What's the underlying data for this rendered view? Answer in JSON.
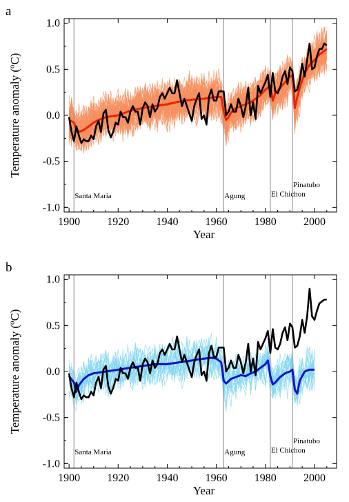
{
  "chart_data": [
    {
      "type": "line",
      "panel_label": "a",
      "xlabel": "Year",
      "ylabel": "Temperature anomaly (ºC)",
      "xlim": [
        1898,
        2009
      ],
      "ylim": [
        -1.05,
        1.05
      ],
      "xticks": [
        1900,
        1920,
        1940,
        1960,
        1980,
        2000
      ],
      "yticks": [
        -1.0,
        -0.5,
        0.0,
        0.5,
        1.0
      ],
      "ytick_labels": [
        "-1.0",
        "-0.5",
        "0.0",
        "0.5",
        "1.0"
      ],
      "grid": false,
      "volcanoes": [
        {
          "name": "Santa Maria",
          "year": 1902,
          "label_y": -0.87
        },
        {
          "name": "Agung",
          "year": 1963,
          "label_y": -0.87
        },
        {
          "name": "El Chichon",
          "year": 1982,
          "label_y": -0.85
        },
        {
          "name": "Pinatubo",
          "year": 1991,
          "label_y": -0.75
        }
      ],
      "observed": {
        "color": "#000000",
        "x": [
          1900,
          1901,
          1902,
          1903,
          1904,
          1905,
          1906,
          1907,
          1908,
          1909,
          1910,
          1911,
          1912,
          1913,
          1914,
          1915,
          1916,
          1917,
          1918,
          1919,
          1920,
          1921,
          1922,
          1923,
          1924,
          1925,
          1926,
          1927,
          1928,
          1929,
          1930,
          1931,
          1932,
          1933,
          1934,
          1935,
          1936,
          1937,
          1938,
          1939,
          1940,
          1941,
          1942,
          1943,
          1944,
          1945,
          1946,
          1947,
          1948,
          1949,
          1950,
          1951,
          1952,
          1953,
          1954,
          1955,
          1956,
          1957,
          1958,
          1959,
          1960,
          1961,
          1962,
          1963,
          1964,
          1965,
          1966,
          1967,
          1968,
          1969,
          1970,
          1971,
          1972,
          1973,
          1974,
          1975,
          1976,
          1977,
          1978,
          1979,
          1980,
          1981,
          1982,
          1983,
          1984,
          1985,
          1986,
          1987,
          1988,
          1989,
          1990,
          1991,
          1992,
          1993,
          1994,
          1995,
          1996,
          1997,
          1998,
          1999,
          2000,
          2001,
          2002,
          2003,
          2004,
          2005
        ],
        "y": [
          -0.02,
          -0.18,
          -0.28,
          -0.12,
          -0.22,
          -0.3,
          -0.26,
          -0.28,
          -0.28,
          -0.22,
          -0.26,
          -0.12,
          -0.06,
          -0.18,
          0.02,
          0.06,
          -0.16,
          -0.24,
          -0.18,
          -0.08,
          -0.1,
          0.04,
          -0.02,
          -0.02,
          -0.08,
          0.04,
          0.1,
          0.04,
          0.04,
          -0.1,
          0.08,
          0.14,
          0.1,
          -0.02,
          0.12,
          0.04,
          0.08,
          0.2,
          0.24,
          0.18,
          0.24,
          0.3,
          0.24,
          0.24,
          0.38,
          0.24,
          0.1,
          0.18,
          0.1,
          0.02,
          -0.06,
          0.1,
          0.18,
          0.24,
          -0.04,
          0.0,
          -0.1,
          0.2,
          0.28,
          0.16,
          0.16,
          0.26,
          0.26,
          0.26,
          0.0,
          0.04,
          0.12,
          0.04,
          0.04,
          0.18,
          0.1,
          -0.02,
          0.1,
          0.3,
          0.0,
          0.14,
          -0.04,
          0.32,
          0.24,
          0.3,
          0.36,
          0.44,
          0.2,
          0.46,
          0.26,
          0.24,
          0.3,
          0.42,
          0.48,
          0.34,
          0.52,
          0.48,
          0.26,
          0.28,
          0.38,
          0.56,
          0.42,
          0.6,
          0.78,
          0.5,
          0.52,
          0.64,
          0.72,
          0.72,
          0.78,
          0.76
        ]
      },
      "ensemble_mean": {
        "color": "#ee2200",
        "x": [
          1900,
          1902,
          1903,
          1904,
          1906,
          1908,
          1910,
          1912,
          1915,
          1920,
          1925,
          1930,
          1935,
          1940,
          1945,
          1950,
          1955,
          1960,
          1962,
          1963,
          1964,
          1965,
          1966,
          1968,
          1970,
          1972,
          1974,
          1976,
          1978,
          1980,
          1982,
          1983,
          1984,
          1986,
          1988,
          1990,
          1991,
          1992,
          1993,
          1994,
          1996,
          1998,
          2000,
          2002,
          2004,
          2005
        ],
        "y": [
          -0.05,
          -0.08,
          -0.15,
          -0.18,
          -0.16,
          -0.12,
          -0.08,
          -0.05,
          -0.02,
          0.0,
          0.05,
          0.08,
          0.1,
          0.12,
          0.15,
          0.17,
          0.18,
          0.2,
          0.2,
          0.04,
          -0.05,
          -0.02,
          0.03,
          0.08,
          0.1,
          0.12,
          0.14,
          0.18,
          0.22,
          0.28,
          0.32,
          0.16,
          0.24,
          0.3,
          0.36,
          0.42,
          0.44,
          0.08,
          0.2,
          0.3,
          0.46,
          0.55,
          0.6,
          0.66,
          0.7,
          0.72
        ]
      },
      "ensemble_members_count": 58,
      "ensemble_color": "#f59060"
    },
    {
      "type": "line",
      "panel_label": "b",
      "xlabel": "Year",
      "ylabel": "Temperature anomaly (ºC)",
      "xlim": [
        1898,
        2009
      ],
      "ylim": [
        -1.05,
        1.05
      ],
      "xticks": [
        1900,
        1920,
        1940,
        1960,
        1980,
        2000
      ],
      "yticks": [
        -1.0,
        -0.5,
        0.0,
        0.5,
        1.0
      ],
      "ytick_labels": [
        "-1.0",
        "-0.5",
        "0.0",
        "0.5",
        "1.0"
      ],
      "grid": false,
      "volcanoes": [
        {
          "name": "Santa Maria",
          "year": 1902,
          "label_y": -0.87
        },
        {
          "name": "Agung",
          "year": 1963,
          "label_y": -0.87
        },
        {
          "name": "El Chichon",
          "year": 1982,
          "label_y": -0.85
        },
        {
          "name": "Pinatubo",
          "year": 1991,
          "label_y": -0.75
        }
      ],
      "observed": {
        "color": "#000000",
        "x": [
          1900,
          1901,
          1902,
          1903,
          1904,
          1905,
          1906,
          1907,
          1908,
          1909,
          1910,
          1911,
          1912,
          1913,
          1914,
          1915,
          1916,
          1917,
          1918,
          1919,
          1920,
          1921,
          1922,
          1923,
          1924,
          1925,
          1926,
          1927,
          1928,
          1929,
          1930,
          1931,
          1932,
          1933,
          1934,
          1935,
          1936,
          1937,
          1938,
          1939,
          1940,
          1941,
          1942,
          1943,
          1944,
          1945,
          1946,
          1947,
          1948,
          1949,
          1950,
          1951,
          1952,
          1953,
          1954,
          1955,
          1956,
          1957,
          1958,
          1959,
          1960,
          1961,
          1962,
          1963,
          1964,
          1965,
          1966,
          1967,
          1968,
          1969,
          1970,
          1971,
          1972,
          1973,
          1974,
          1975,
          1976,
          1977,
          1978,
          1979,
          1980,
          1981,
          1982,
          1983,
          1984,
          1985,
          1986,
          1987,
          1988,
          1989,
          1990,
          1991,
          1992,
          1993,
          1994,
          1995,
          1996,
          1997,
          1998,
          1999,
          2000,
          2001,
          2002,
          2003,
          2004,
          2005
        ],
        "y": [
          -0.02,
          -0.18,
          -0.28,
          -0.12,
          -0.22,
          -0.3,
          -0.26,
          -0.28,
          -0.28,
          -0.22,
          -0.26,
          -0.12,
          -0.06,
          -0.18,
          0.02,
          0.06,
          -0.16,
          -0.24,
          -0.18,
          -0.08,
          -0.1,
          0.04,
          -0.02,
          -0.02,
          -0.08,
          0.04,
          0.1,
          0.04,
          0.04,
          -0.1,
          0.08,
          0.14,
          0.1,
          -0.02,
          0.12,
          0.04,
          0.08,
          0.2,
          0.24,
          0.18,
          0.24,
          0.3,
          0.24,
          0.24,
          0.38,
          0.24,
          0.1,
          0.18,
          0.1,
          0.02,
          -0.06,
          0.1,
          0.18,
          0.24,
          -0.04,
          0.0,
          -0.1,
          0.2,
          0.28,
          0.16,
          0.16,
          0.26,
          0.26,
          0.26,
          0.0,
          0.04,
          0.12,
          0.04,
          0.04,
          0.18,
          0.1,
          -0.02,
          0.1,
          0.3,
          0.0,
          0.14,
          -0.04,
          0.32,
          0.24,
          0.3,
          0.36,
          0.44,
          0.2,
          0.46,
          0.26,
          0.24,
          0.3,
          0.42,
          0.48,
          0.34,
          0.52,
          0.48,
          0.26,
          0.28,
          0.38,
          0.56,
          0.42,
          0.6,
          0.9,
          0.6,
          0.56,
          0.66,
          0.74,
          0.76,
          0.78,
          0.78
        ]
      },
      "ensemble_mean": {
        "color": "#1111cc",
        "x": [
          1900,
          1902,
          1903,
          1904,
          1906,
          1908,
          1910,
          1915,
          1920,
          1925,
          1930,
          1935,
          1940,
          1945,
          1950,
          1955,
          1958,
          1960,
          1962,
          1963,
          1964,
          1966,
          1968,
          1970,
          1972,
          1974,
          1976,
          1978,
          1980,
          1981,
          1982,
          1983,
          1984,
          1986,
          1988,
          1990,
          1991,
          1992,
          1993,
          1994,
          1996,
          1998,
          2000
        ],
        "y": [
          -0.05,
          -0.12,
          -0.22,
          -0.15,
          -0.08,
          -0.04,
          -0.02,
          0.0,
          0.02,
          0.04,
          0.06,
          0.08,
          0.08,
          0.1,
          0.12,
          0.14,
          0.15,
          0.14,
          0.1,
          -0.1,
          -0.13,
          -0.08,
          -0.06,
          -0.04,
          -0.05,
          -0.02,
          0.0,
          0.04,
          0.08,
          0.12,
          -0.05,
          -0.14,
          -0.12,
          -0.06,
          -0.02,
          0.0,
          0.02,
          -0.2,
          -0.24,
          -0.1,
          0.0,
          0.02,
          0.02
        ]
      },
      "ensemble_members_count": 19,
      "ensemble_color": "#7fd6f2"
    }
  ]
}
